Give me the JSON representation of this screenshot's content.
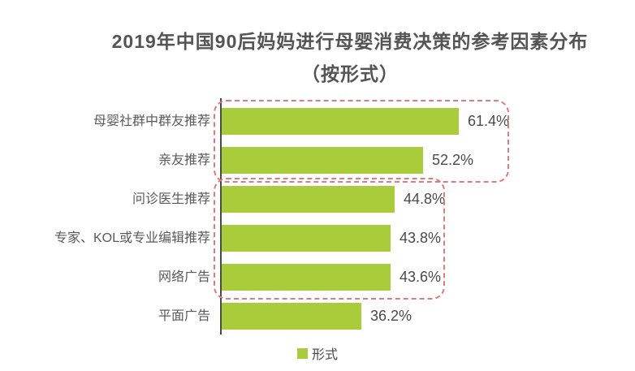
{
  "page": {
    "background": "#ffffff"
  },
  "chart_data": {
    "type": "bar",
    "orientation": "horizontal",
    "title": "2019年中国90后妈妈进行母婴消费决策的参考因素分布",
    "subtitle": "（按形式）",
    "categories": [
      "母婴社群中群友推荐",
      "亲友推荐",
      "问诊医生推荐",
      "专家、KOL或专业编辑推荐",
      "网络广告",
      "平面广告"
    ],
    "values": [
      61.4,
      52.2,
      44.8,
      43.8,
      43.6,
      36.2
    ],
    "value_labels": [
      "61.4%",
      "52.2%",
      "44.8%",
      "43.8%",
      "43.6%",
      "36.2%"
    ],
    "xlim": [
      0,
      65
    ],
    "grid": false,
    "bar_color": "#a9cd3a",
    "title_color": "#545454",
    "text_color": "#4a4a4a",
    "legend": {
      "label": "形式",
      "position": "bottom",
      "swatch_color": "#a9cd3a"
    },
    "annotations": {
      "highlight_box_color": "#dd7c7c",
      "highlight_box_style": "dashed rounded rectangle",
      "groups": [
        {
          "name": "top-two-recommendation-sources",
          "from_index": 0,
          "to_index": 1
        },
        {
          "name": "middle-three-professional-sources",
          "from_index": 2,
          "to_index": 4
        }
      ]
    }
  }
}
